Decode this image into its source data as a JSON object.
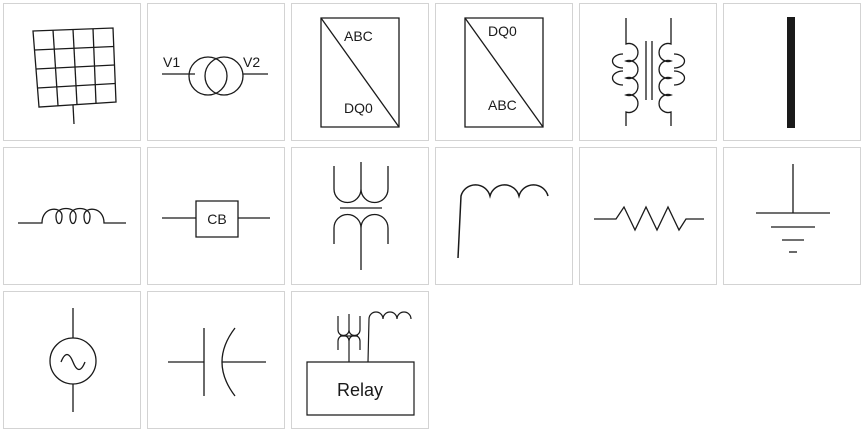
{
  "palette": {
    "stroke": "#1a1a1a",
    "tile_border": "#d3d3d3",
    "background": "#ffffff"
  },
  "tiles": [
    {
      "icon": "solar-panel-icon"
    },
    {
      "icon": "voltage-transformer-icon",
      "labels": {
        "left": "V1",
        "right": "V2"
      }
    },
    {
      "icon": "abc-to-dq0-converter-icon",
      "labels": {
        "top": "ABC",
        "bottom": "DQ0"
      }
    },
    {
      "icon": "dq0-to-abc-converter-icon",
      "labels": {
        "top": "DQ0",
        "bottom": "ABC"
      }
    },
    {
      "icon": "core-transformer-icon"
    },
    {
      "icon": "busbar-icon"
    },
    {
      "icon": "inductor-icon"
    },
    {
      "icon": "circuit-breaker-icon",
      "labels": {
        "box": "CB"
      }
    },
    {
      "icon": "vertical-transformer-icon"
    },
    {
      "icon": "coil-icon"
    },
    {
      "icon": "resistor-icon"
    },
    {
      "icon": "ground-icon"
    },
    {
      "icon": "ac-source-icon"
    },
    {
      "icon": "capacitor-icon"
    },
    {
      "icon": "relay-icon",
      "labels": {
        "box": "Relay"
      }
    }
  ]
}
